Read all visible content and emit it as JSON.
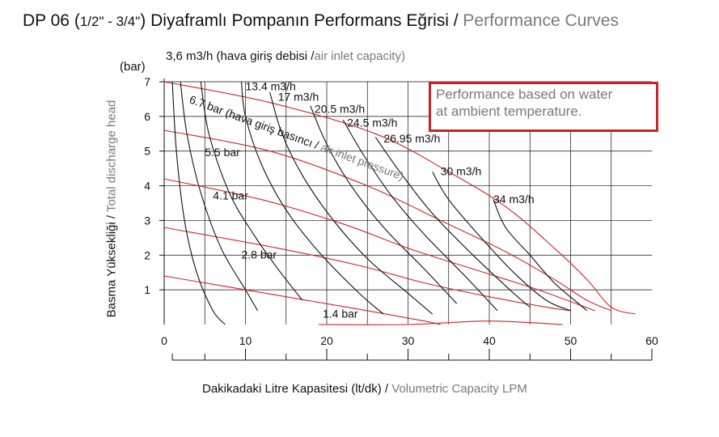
{
  "header": {
    "title_main": "DP 06 (",
    "title_size": "1/2\" - 3/4\"",
    "title_rest": ") Diyaframlı Pompanın Performans Eğrisi / ",
    "title_en": "Performance Curves"
  },
  "note": {
    "line1": "Performance based on water",
    "line2": "at ambient temperature."
  },
  "labels": {
    "air_capacity_prefix": "3,6 m3/h (hava giriş debisi /",
    "air_capacity_en": "air inlet capacity)",
    "y_unit": "(bar)",
    "y_title_tr": "Basma Yüksekliği / ",
    "y_title_en": "Total discharge head",
    "x_title_tr": "Dakikadaki Litre Kapasitesi (lt/dk) / ",
    "x_title_en": "Volumetric Capacity LPM",
    "pressure_axis_tr": "6.7 bar (hava giriş basıncı / ",
    "pressure_axis_en": "air inlet pressure)"
  },
  "chart_data": {
    "type": "line",
    "xlabel": "Dakikadaki Litre Kapasitesi (lt/dk) / Volumetric Capacity LPM",
    "ylabel": "Basma Yüksekliği / Total discharge head",
    "xlim": [
      0,
      60
    ],
    "ylim": [
      0,
      7
    ],
    "x_ticks": [
      "0",
      "10",
      "20",
      "30",
      "40",
      "50",
      "60"
    ],
    "y_ticks": [
      "1",
      "2",
      "3",
      "4",
      "5",
      "6",
      "7"
    ],
    "grid": true,
    "colors": {
      "air_capacity": "#111111",
      "air_pressure": "#d4232b",
      "grid": "#111111"
    },
    "air_capacity_curves": [
      {
        "label": "3,6 m3/h",
        "points": [
          [
            1,
            7
          ],
          [
            1.5,
            5
          ],
          [
            2.5,
            3
          ],
          [
            4,
            1.5
          ],
          [
            6,
            0.4
          ],
          [
            7.5,
            0
          ]
        ]
      },
      {
        "label": "",
        "points": [
          [
            2,
            7
          ],
          [
            2.8,
            5.5
          ],
          [
            4.5,
            3.8
          ],
          [
            7,
            2.2
          ],
          [
            10,
            1
          ],
          [
            11.5,
            0.4
          ]
        ]
      },
      {
        "label": "",
        "points": [
          [
            4.5,
            7
          ],
          [
            5.5,
            5.5
          ],
          [
            8,
            3.8
          ],
          [
            11,
            2.6
          ],
          [
            14,
            1.6
          ],
          [
            17,
            0.7
          ]
        ]
      },
      {
        "label": "13.4 m3/h",
        "points": [
          [
            9.5,
            7
          ],
          [
            10,
            6
          ],
          [
            12,
            4.6
          ],
          [
            15,
            3.3
          ],
          [
            19,
            2.1
          ],
          [
            24,
            0.9
          ],
          [
            27,
            0.3
          ]
        ]
      },
      {
        "label": "17 m3/h",
        "points": [
          [
            13,
            6.7
          ],
          [
            14.5,
            5.5
          ],
          [
            17,
            4.3
          ],
          [
            20.5,
            3.1
          ],
          [
            25,
            1.9
          ],
          [
            30,
            0.9
          ],
          [
            33,
            0.3
          ]
        ]
      },
      {
        "label": "20.5 m3/h",
        "points": [
          [
            18,
            6.3
          ],
          [
            20,
            5.2
          ],
          [
            23,
            4
          ],
          [
            27,
            2.8
          ],
          [
            32,
            1.6
          ],
          [
            36,
            0.6
          ]
        ]
      },
      {
        "label": "24.5 m3/h",
        "points": [
          [
            22,
            5.9
          ],
          [
            24.5,
            4.9
          ],
          [
            28,
            3.7
          ],
          [
            32,
            2.6
          ],
          [
            37,
            1.4
          ],
          [
            41,
            0.4
          ]
        ]
      },
      {
        "label": "26.95 m3/h",
        "points": [
          [
            26,
            5.4
          ],
          [
            29,
            4.4
          ],
          [
            33,
            3.2
          ],
          [
            38,
            2
          ],
          [
            43,
            0.9
          ],
          [
            45,
            0.5
          ]
        ]
      },
      {
        "label": "30 m3/h",
        "points": [
          [
            33,
            4.4
          ],
          [
            35,
            3.6
          ],
          [
            39,
            2.5
          ],
          [
            43,
            1.5
          ],
          [
            47,
            0.7
          ],
          [
            50,
            0.4
          ]
        ]
      },
      {
        "label": "34 m3/h",
        "points": [
          [
            40.5,
            3.6
          ],
          [
            42,
            2.8
          ],
          [
            45,
            2
          ],
          [
            48,
            1.2
          ],
          [
            51,
            0.6
          ],
          [
            52,
            0.4
          ]
        ]
      }
    ],
    "air_pressure_curves": [
      {
        "label": "6.7 bar",
        "points": [
          [
            0,
            7
          ],
          [
            13,
            6.4
          ],
          [
            26,
            5.5
          ],
          [
            35,
            4.4
          ],
          [
            42,
            3.4
          ],
          [
            48,
            2.2
          ],
          [
            52,
            1.3
          ],
          [
            55,
            0.5
          ],
          [
            58,
            0.3
          ]
        ]
      },
      {
        "label": "5.5 bar",
        "points": [
          [
            0,
            5.6
          ],
          [
            13,
            5
          ],
          [
            25,
            4
          ],
          [
            34,
            3
          ],
          [
            42,
            2.1
          ],
          [
            48,
            1.3
          ],
          [
            52,
            0.7
          ],
          [
            55,
            0.4
          ]
        ]
      },
      {
        "label": "4.1 bar",
        "points": [
          [
            0,
            4.2
          ],
          [
            12,
            3.6
          ],
          [
            22,
            2.9
          ],
          [
            30,
            2.2
          ],
          [
            38,
            1.6
          ],
          [
            46,
            1
          ],
          [
            53,
            0.4
          ]
        ]
      },
      {
        "label": "2.8 bar",
        "points": [
          [
            0,
            2.8
          ],
          [
            14,
            2.2
          ],
          [
            24,
            1.7
          ],
          [
            32,
            1.2
          ],
          [
            40,
            0.8
          ],
          [
            47,
            0.5
          ],
          [
            50,
            0.4
          ]
        ]
      },
      {
        "label": "1.4 bar",
        "points": [
          [
            0,
            1.4
          ],
          [
            15,
            0.8
          ],
          [
            25,
            0.4
          ],
          [
            32,
            0.1
          ],
          [
            34,
            0
          ]
        ]
      },
      {
        "label": "",
        "points": [
          [
            19,
            0
          ],
          [
            30,
            0
          ],
          [
            40,
            0.1
          ],
          [
            49,
            0
          ]
        ]
      }
    ],
    "pressure_labels": [
      {
        "label": "6.7 bar",
        "x": 3,
        "y": 6.4
      },
      {
        "label": "5.5 bar",
        "x": 5,
        "y": 4.85
      },
      {
        "label": "4.1 bar",
        "x": 6,
        "y": 3.6
      },
      {
        "label": "2.8 bar",
        "x": 9.5,
        "y": 1.9
      },
      {
        "label": "1.4 bar",
        "x": 19.5,
        "y": 0.2
      }
    ],
    "capacity_labels": [
      {
        "label": "13.4 m3/h",
        "x": 10,
        "y": 6.75
      },
      {
        "label": "17 m3/h",
        "x": 14,
        "y": 6.45
      },
      {
        "label": "20.5 m3/h",
        "x": 18.5,
        "y": 6.1
      },
      {
        "label": "24.5 m3/h",
        "x": 22.5,
        "y": 5.7
      },
      {
        "label": "26.95 m3/h",
        "x": 27,
        "y": 5.25
      },
      {
        "label": "30 m3/h",
        "x": 34,
        "y": 4.3
      },
      {
        "label": "34 m3/h",
        "x": 40.5,
        "y": 3.5
      }
    ]
  }
}
